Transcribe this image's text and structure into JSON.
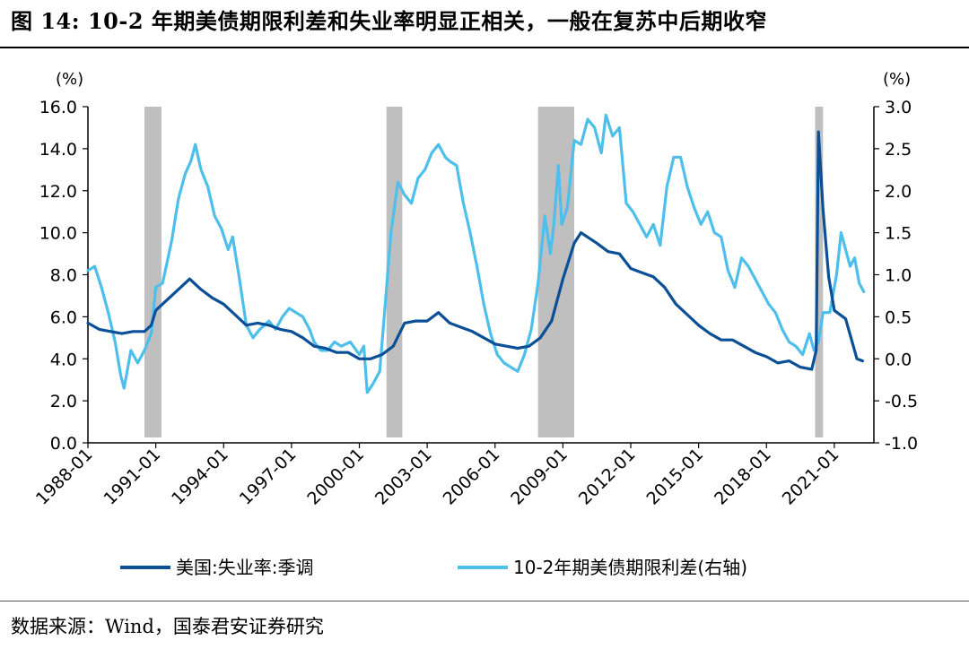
{
  "figure": {
    "title": "图 14: 10-2 年期美债期限利差和失业率明显正相关，一般在复苏中后期收窄",
    "source": "数据来源：Wind，国泰君安证券研究"
  },
  "colors": {
    "unemployment": "#0b4f97",
    "spread": "#4dbfea",
    "recession": "#bfbfbf",
    "axis": "#000000"
  },
  "chart_data": {
    "type": "line",
    "xlabel": "",
    "x_ticks": [
      "1988-01",
      "1991-01",
      "1994-01",
      "1997-01",
      "2000-01",
      "2003-01",
      "2006-01",
      "2009-01",
      "2012-01",
      "2015-01",
      "2018-01",
      "2021-01"
    ],
    "x_range": [
      1988.0,
      2022.75
    ],
    "y_left": {
      "unit": "(%)",
      "range": [
        0,
        16
      ],
      "ticks": [
        "0.0",
        "2.0",
        "4.0",
        "6.0",
        "8.0",
        "10.0",
        "12.0",
        "14.0",
        "16.0"
      ]
    },
    "y_right": {
      "unit": "(%)",
      "range": [
        -1.0,
        3.0
      ],
      "ticks": [
        "-1.0",
        "-0.5",
        "0.0",
        "0.5",
        "1.0",
        "1.5",
        "2.0",
        "2.5",
        "3.0"
      ]
    },
    "recessions": [
      [
        1990.5,
        1991.25
      ],
      [
        2001.2,
        2001.9
      ],
      [
        2007.9,
        2009.5
      ],
      [
        2020.15,
        2020.5
      ]
    ],
    "series": [
      {
        "name": "美国:失业率:季调",
        "axis": "left",
        "points": [
          [
            1988.0,
            5.7
          ],
          [
            1988.5,
            5.4
          ],
          [
            1989.0,
            5.3
          ],
          [
            1989.5,
            5.2
          ],
          [
            1990.0,
            5.3
          ],
          [
            1990.5,
            5.3
          ],
          [
            1990.8,
            5.6
          ],
          [
            1991.0,
            6.3
          ],
          [
            1991.5,
            6.8
          ],
          [
            1992.0,
            7.3
          ],
          [
            1992.5,
            7.8
          ],
          [
            1993.0,
            7.3
          ],
          [
            1993.5,
            6.9
          ],
          [
            1994.0,
            6.6
          ],
          [
            1994.5,
            6.1
          ],
          [
            1995.0,
            5.6
          ],
          [
            1995.5,
            5.7
          ],
          [
            1996.0,
            5.6
          ],
          [
            1996.5,
            5.4
          ],
          [
            1997.0,
            5.3
          ],
          [
            1997.5,
            5.0
          ],
          [
            1998.0,
            4.6
          ],
          [
            1998.5,
            4.5
          ],
          [
            1999.0,
            4.3
          ],
          [
            1999.5,
            4.3
          ],
          [
            2000.0,
            4.0
          ],
          [
            2000.5,
            4.0
          ],
          [
            2001.0,
            4.2
          ],
          [
            2001.5,
            4.6
          ],
          [
            2002.0,
            5.7
          ],
          [
            2002.5,
            5.8
          ],
          [
            2003.0,
            5.8
          ],
          [
            2003.5,
            6.2
          ],
          [
            2004.0,
            5.7
          ],
          [
            2004.5,
            5.5
          ],
          [
            2005.0,
            5.3
          ],
          [
            2005.5,
            5.0
          ],
          [
            2006.0,
            4.7
          ],
          [
            2006.5,
            4.6
          ],
          [
            2007.0,
            4.5
          ],
          [
            2007.5,
            4.6
          ],
          [
            2008.0,
            5.0
          ],
          [
            2008.5,
            5.8
          ],
          [
            2009.0,
            7.8
          ],
          [
            2009.5,
            9.5
          ],
          [
            2009.8,
            10.0
          ],
          [
            2010.5,
            9.5
          ],
          [
            2011.0,
            9.1
          ],
          [
            2011.5,
            9.0
          ],
          [
            2012.0,
            8.3
          ],
          [
            2012.5,
            8.1
          ],
          [
            2013.0,
            7.9
          ],
          [
            2013.5,
            7.4
          ],
          [
            2014.0,
            6.6
          ],
          [
            2014.5,
            6.1
          ],
          [
            2015.0,
            5.6
          ],
          [
            2015.5,
            5.2
          ],
          [
            2016.0,
            4.9
          ],
          [
            2016.5,
            4.9
          ],
          [
            2017.0,
            4.6
          ],
          [
            2017.5,
            4.3
          ],
          [
            2018.0,
            4.1
          ],
          [
            2018.5,
            3.8
          ],
          [
            2019.0,
            3.9
          ],
          [
            2019.5,
            3.6
          ],
          [
            2020.0,
            3.5
          ],
          [
            2020.2,
            4.4
          ],
          [
            2020.3,
            14.8
          ],
          [
            2020.5,
            11.1
          ],
          [
            2020.75,
            7.9
          ],
          [
            2021.0,
            6.3
          ],
          [
            2021.5,
            5.9
          ],
          [
            2022.0,
            4.0
          ],
          [
            2022.25,
            3.9
          ]
        ]
      },
      {
        "name": "10-2年期美债期限利差(右轴)",
        "axis": "right",
        "points": [
          [
            1988.0,
            1.05
          ],
          [
            1988.3,
            1.1
          ],
          [
            1988.6,
            0.85
          ],
          [
            1988.9,
            0.55
          ],
          [
            1989.2,
            0.2
          ],
          [
            1989.45,
            -0.2
          ],
          [
            1989.6,
            -0.35
          ],
          [
            1989.9,
            0.1
          ],
          [
            1990.2,
            -0.05
          ],
          [
            1990.5,
            0.1
          ],
          [
            1990.8,
            0.3
          ],
          [
            1991.0,
            0.85
          ],
          [
            1991.3,
            0.9
          ],
          [
            1991.7,
            1.4
          ],
          [
            1992.0,
            1.9
          ],
          [
            1992.3,
            2.2
          ],
          [
            1992.55,
            2.35
          ],
          [
            1992.75,
            2.55
          ],
          [
            1993.0,
            2.25
          ],
          [
            1993.3,
            2.05
          ],
          [
            1993.6,
            1.7
          ],
          [
            1993.9,
            1.55
          ],
          [
            1994.2,
            1.3
          ],
          [
            1994.4,
            1.45
          ],
          [
            1994.7,
            0.95
          ],
          [
            1995.0,
            0.4
          ],
          [
            1995.3,
            0.25
          ],
          [
            1995.6,
            0.35
          ],
          [
            1996.0,
            0.45
          ],
          [
            1996.3,
            0.35
          ],
          [
            1996.6,
            0.5
          ],
          [
            1996.9,
            0.6
          ],
          [
            1997.2,
            0.55
          ],
          [
            1997.5,
            0.5
          ],
          [
            1997.8,
            0.35
          ],
          [
            1998.0,
            0.2
          ],
          [
            1998.3,
            0.1
          ],
          [
            1998.6,
            0.1
          ],
          [
            1998.9,
            0.2
          ],
          [
            1999.2,
            0.15
          ],
          [
            1999.6,
            0.2
          ],
          [
            2000.0,
            0.05
          ],
          [
            2000.2,
            0.15
          ],
          [
            2000.35,
            -0.4
          ],
          [
            2000.6,
            -0.3
          ],
          [
            2000.9,
            -0.15
          ],
          [
            2001.1,
            0.5
          ],
          [
            2001.4,
            1.5
          ],
          [
            2001.7,
            2.1
          ],
          [
            2002.0,
            1.95
          ],
          [
            2002.3,
            1.85
          ],
          [
            2002.6,
            2.15
          ],
          [
            2002.9,
            2.25
          ],
          [
            2003.2,
            2.45
          ],
          [
            2003.5,
            2.55
          ],
          [
            2003.8,
            2.4
          ],
          [
            2004.0,
            2.35
          ],
          [
            2004.3,
            2.3
          ],
          [
            2004.6,
            1.85
          ],
          [
            2004.9,
            1.5
          ],
          [
            2005.2,
            1.1
          ],
          [
            2005.5,
            0.65
          ],
          [
            2005.8,
            0.3
          ],
          [
            2006.1,
            0.05
          ],
          [
            2006.4,
            -0.05
          ],
          [
            2006.7,
            -0.1
          ],
          [
            2007.0,
            -0.15
          ],
          [
            2007.3,
            0.05
          ],
          [
            2007.6,
            0.35
          ],
          [
            2007.9,
            0.9
          ],
          [
            2008.2,
            1.7
          ],
          [
            2008.45,
            1.25
          ],
          [
            2008.6,
            1.6
          ],
          [
            2008.8,
            2.3
          ],
          [
            2008.95,
            1.6
          ],
          [
            2009.2,
            1.8
          ],
          [
            2009.5,
            2.6
          ],
          [
            2009.8,
            2.55
          ],
          [
            2010.1,
            2.85
          ],
          [
            2010.4,
            2.75
          ],
          [
            2010.7,
            2.45
          ],
          [
            2010.9,
            2.9
          ],
          [
            2011.2,
            2.65
          ],
          [
            2011.5,
            2.75
          ],
          [
            2011.8,
            1.85
          ],
          [
            2012.1,
            1.75
          ],
          [
            2012.4,
            1.6
          ],
          [
            2012.7,
            1.45
          ],
          [
            2013.0,
            1.6
          ],
          [
            2013.3,
            1.35
          ],
          [
            2013.6,
            2.05
          ],
          [
            2013.9,
            2.4
          ],
          [
            2014.2,
            2.4
          ],
          [
            2014.5,
            2.05
          ],
          [
            2014.8,
            1.8
          ],
          [
            2015.1,
            1.6
          ],
          [
            2015.4,
            1.75
          ],
          [
            2015.7,
            1.5
          ],
          [
            2016.0,
            1.45
          ],
          [
            2016.3,
            1.05
          ],
          [
            2016.6,
            0.85
          ],
          [
            2016.9,
            1.2
          ],
          [
            2017.2,
            1.1
          ],
          [
            2017.5,
            0.95
          ],
          [
            2017.8,
            0.8
          ],
          [
            2018.1,
            0.65
          ],
          [
            2018.4,
            0.55
          ],
          [
            2018.7,
            0.35
          ],
          [
            2019.0,
            0.2
          ],
          [
            2019.3,
            0.15
          ],
          [
            2019.6,
            0.05
          ],
          [
            2019.9,
            0.3
          ],
          [
            2020.1,
            0.1
          ],
          [
            2020.3,
            0.2
          ],
          [
            2020.5,
            0.55
          ],
          [
            2020.8,
            0.55
          ],
          [
            2021.1,
            1.0
          ],
          [
            2021.3,
            1.5
          ],
          [
            2021.5,
            1.3
          ],
          [
            2021.7,
            1.1
          ],
          [
            2021.9,
            1.2
          ],
          [
            2022.1,
            0.9
          ],
          [
            2022.3,
            0.8
          ]
        ]
      }
    ],
    "legend": {
      "position": "bottom"
    }
  }
}
